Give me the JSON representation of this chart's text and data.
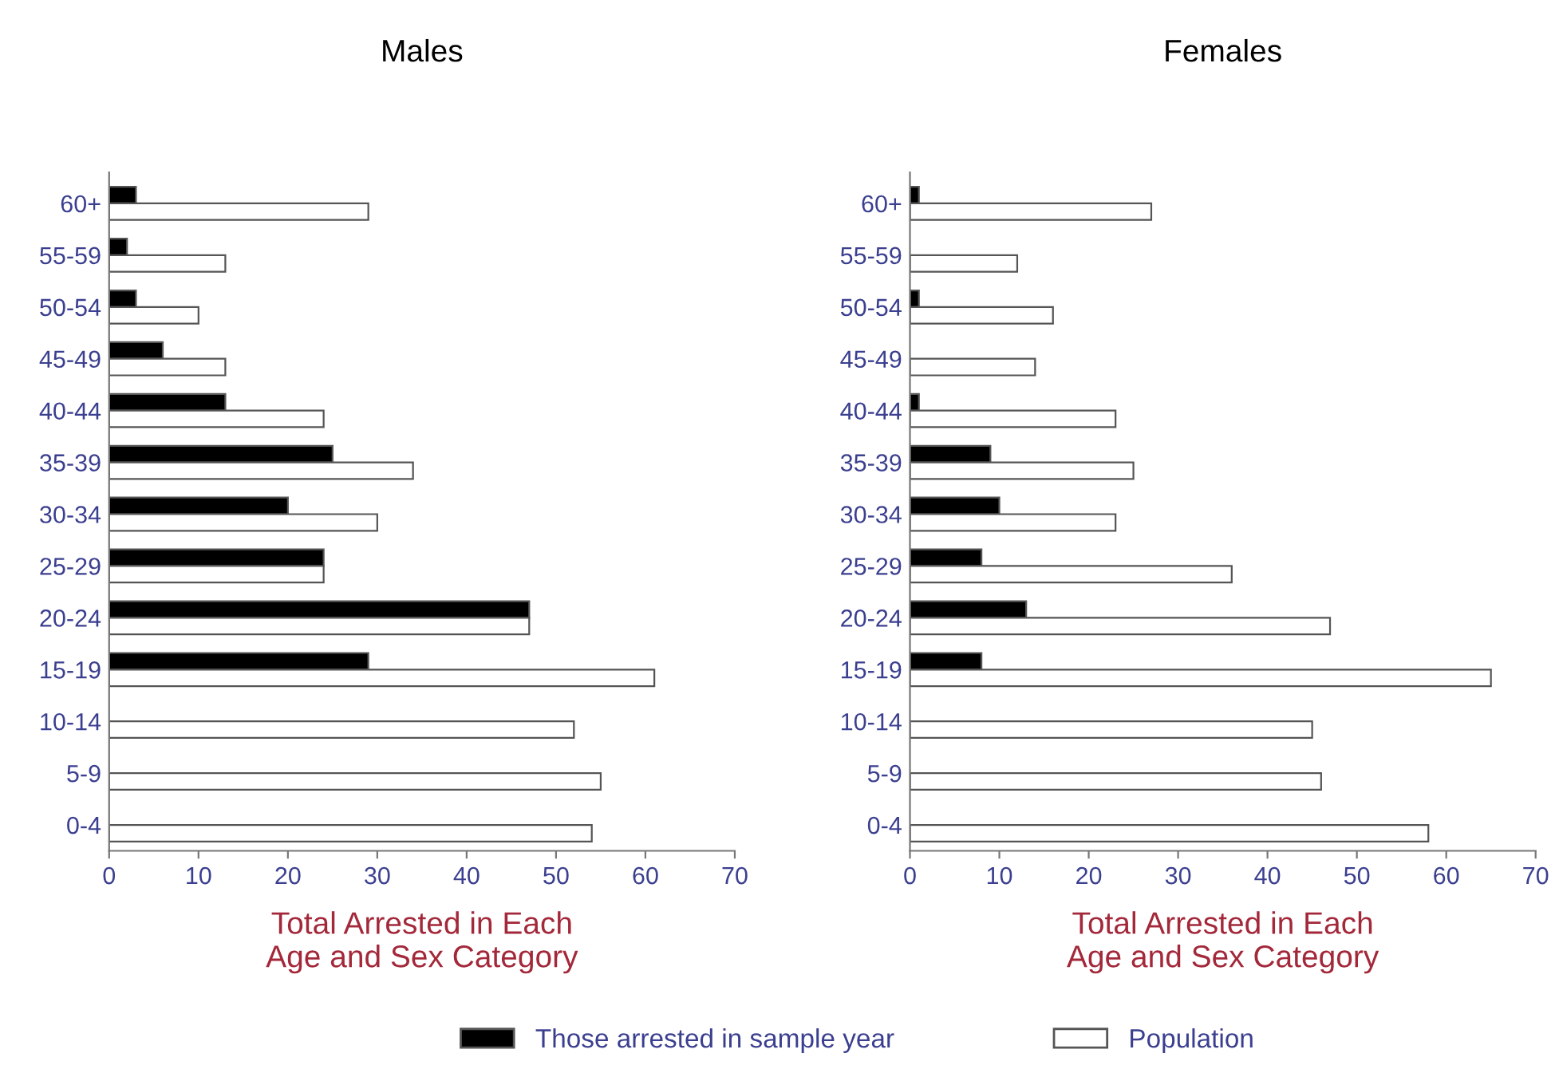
{
  "chart_data": [
    {
      "type": "bar",
      "orientation": "horizontal",
      "title": "Males",
      "xlabel": "Total Arrested in Each\nAge and Sex Category",
      "categories": [
        "60+",
        "55-59",
        "50-54",
        "45-49",
        "40-44",
        "35-39",
        "30-34",
        "25-29",
        "20-24",
        "15-19",
        "10-14",
        "5-9",
        "0-4"
      ],
      "series": [
        {
          "name": "Those arrested in sample year",
          "color": "#000000",
          "values": [
            3,
            2,
            3,
            6,
            13,
            25,
            20,
            24,
            47,
            29,
            0,
            0,
            0
          ]
        },
        {
          "name": "Population",
          "color": "#ffffff",
          "values": [
            29,
            13,
            10,
            13,
            24,
            34,
            30,
            24,
            47,
            61,
            52,
            55,
            54
          ]
        }
      ],
      "xlim": [
        0,
        70
      ],
      "xticks": [
        0,
        10,
        20,
        30,
        40,
        50,
        60,
        70
      ],
      "grid": false,
      "legend": "bottom"
    },
    {
      "type": "bar",
      "orientation": "horizontal",
      "title": "Females",
      "xlabel": "Total Arrested in Each\nAge and Sex Category",
      "categories": [
        "60+",
        "55-59",
        "50-54",
        "45-49",
        "40-44",
        "35-39",
        "30-34",
        "25-29",
        "20-24",
        "15-19",
        "10-14",
        "5-9",
        "0-4"
      ],
      "series": [
        {
          "name": "Those arrested in sample year",
          "color": "#000000",
          "values": [
            1,
            0,
            1,
            0,
            1,
            9,
            10,
            8,
            13,
            8,
            0,
            0,
            0
          ]
        },
        {
          "name": "Population",
          "color": "#ffffff",
          "values": [
            27,
            12,
            16,
            14,
            23,
            25,
            23,
            36,
            47,
            65,
            45,
            46,
            58
          ]
        }
      ],
      "xlim": [
        0,
        70
      ],
      "xticks": [
        0,
        10,
        20,
        30,
        40,
        50,
        60,
        70
      ],
      "grid": false,
      "legend": "bottom"
    }
  ]
}
